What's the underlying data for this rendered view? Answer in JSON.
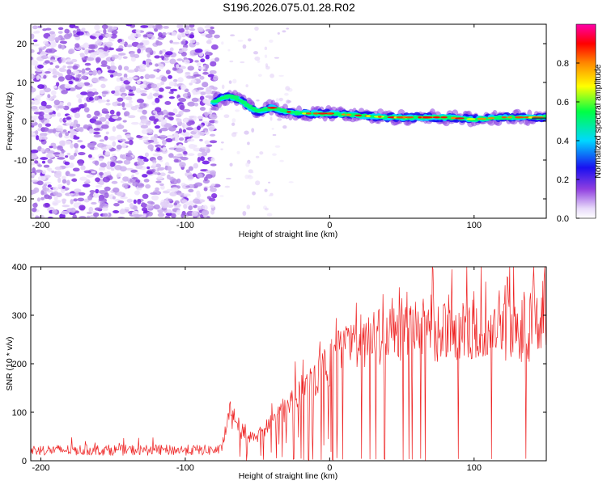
{
  "figure_title": "S196.2026.075.01.28.R02",
  "chart_data": [
    {
      "type": "heatmap",
      "title": "S196.2026.075.01.28.R02",
      "xlabel": "Height of straight line (km)",
      "ylabel": "Frequency (Hz)",
      "xlim": [
        -207,
        150
      ],
      "ylim": [
        -25,
        25
      ],
      "x_ticks": [
        -200,
        -100,
        0,
        100
      ],
      "y_ticks": [
        -20,
        -10,
        0,
        10,
        20
      ],
      "noise_region_x": [
        -207,
        -78
      ],
      "signal_trace": {
        "x": [
          -80,
          -75,
          -70,
          -65,
          -60,
          -55,
          -50,
          -45,
          -40,
          -35,
          -30,
          -20,
          -10,
          0,
          20,
          40,
          60,
          80,
          100,
          120,
          150
        ],
        "freq": [
          5,
          6,
          6.5,
          6,
          5,
          3.5,
          2.5,
          3,
          3.5,
          3,
          2.5,
          2,
          2,
          2,
          1.5,
          1,
          1,
          1,
          0.5,
          1,
          1
        ]
      },
      "colorbar": {
        "label": "Normalized spectral amplitude",
        "range": [
          0,
          1
        ],
        "ticks": [
          0.0,
          0.2,
          0.4,
          0.6,
          0.8
        ],
        "colormap": [
          "#ffffff",
          "#dcc8f5",
          "#8a2be2",
          "#1a10f0",
          "#00d8ff",
          "#00ff44",
          "#ffff00",
          "#ff8800",
          "#ff0000",
          "#ff00aa"
        ]
      }
    },
    {
      "type": "line",
      "xlabel": "Height of straight line (km)",
      "ylabel": "SNR (10 * v/v)",
      "xlim": [
        -207,
        150
      ],
      "ylim": [
        0,
        400
      ],
      "x_ticks": [
        -200,
        -100,
        0,
        100
      ],
      "y_ticks": [
        0,
        100,
        200,
        300,
        400
      ],
      "line_color": "#ee2222",
      "series": [
        {
          "name": "SNR",
          "knots_x": [
            -207,
            -100,
            -75,
            -70,
            -60,
            -50,
            -40,
            -30,
            -20,
            -10,
            0,
            10,
            20,
            30,
            40,
            60,
            80,
            100,
            120,
            150
          ],
          "knots_y": [
            22,
            22,
            22,
            90,
            50,
            50,
            80,
            110,
            150,
            170,
            200,
            220,
            240,
            250,
            270,
            270,
            270,
            275,
            270,
            270
          ],
          "dropouts_x": [
            -46,
            -25,
            -20,
            -18,
            -6,
            2,
            5,
            9,
            22,
            28,
            32,
            38,
            51,
            55,
            57,
            63,
            66,
            89,
            112,
            136
          ],
          "peak_max": 400
        }
      ]
    }
  ]
}
